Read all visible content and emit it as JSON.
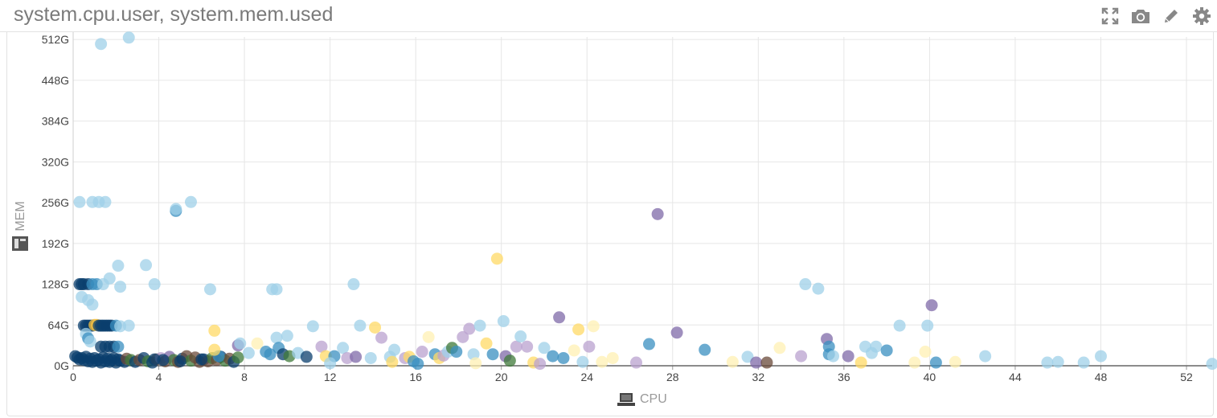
{
  "widget": {
    "title": "system.cpu.user, system.mem.used",
    "icons": [
      "expand-icon",
      "camera-icon",
      "pencil-icon",
      "gear-icon"
    ]
  },
  "chart_data": {
    "type": "scatter",
    "xlabel": "CPU",
    "ylabel": "MEM",
    "xlim": [
      0,
      53.2
    ],
    "ylim": [
      0,
      516
    ],
    "x_ticks": [
      0,
      4,
      8,
      12,
      16,
      20,
      24,
      28,
      32,
      36,
      40,
      44,
      48,
      52
    ],
    "y_ticks": [
      0,
      64,
      128,
      192,
      256,
      320,
      384,
      448,
      512
    ],
    "y_tick_labels": [
      "0G",
      "64G",
      "128G",
      "192G",
      "256G",
      "320G",
      "384G",
      "448G",
      "512G"
    ],
    "grid": true,
    "colors": [
      "#9fd0e8",
      "#3a8fc0",
      "#0b3f6e",
      "#b9a2cf",
      "#7f6aa8",
      "#ffd966",
      "#f5c242",
      "#fff0b3",
      "#3f7a3a",
      "#6a4a3a"
    ],
    "points": [
      [
        1.3,
        505,
        0
      ],
      [
        2.6,
        515,
        0
      ],
      [
        0.3,
        257,
        0
      ],
      [
        0.9,
        257,
        0
      ],
      [
        1.2,
        257,
        0
      ],
      [
        1.5,
        257,
        0
      ],
      [
        5.5,
        257,
        0
      ],
      [
        4.8,
        243,
        1
      ],
      [
        4.8,
        246,
        0
      ],
      [
        2.1,
        157,
        0
      ],
      [
        3.4,
        158,
        0
      ],
      [
        2.2,
        124,
        0
      ],
      [
        3.8,
        128,
        0
      ],
      [
        6.4,
        120,
        0
      ],
      [
        9.3,
        120,
        0
      ],
      [
        9.5,
        120,
        0
      ],
      [
        13.1,
        128,
        0
      ],
      [
        34.2,
        128,
        0
      ],
      [
        34.8,
        121,
        0
      ],
      [
        1.7,
        137,
        0
      ],
      [
        27.3,
        238,
        4
      ],
      [
        19.8,
        168,
        5
      ],
      [
        40.1,
        95,
        4
      ],
      [
        0.3,
        128,
        2
      ],
      [
        0.4,
        128,
        2
      ],
      [
        0.5,
        128,
        2
      ],
      [
        0.7,
        128,
        2
      ],
      [
        0.9,
        128,
        1
      ],
      [
        1.1,
        128,
        1
      ],
      [
        1.4,
        128,
        0
      ],
      [
        0.4,
        108,
        0
      ],
      [
        0.7,
        103,
        0
      ],
      [
        0.9,
        96,
        0
      ],
      [
        0.5,
        63,
        2
      ],
      [
        0.6,
        63,
        2
      ],
      [
        0.7,
        63,
        2
      ],
      [
        0.8,
        63,
        2
      ],
      [
        0.9,
        63,
        2
      ],
      [
        1.0,
        64,
        6
      ],
      [
        1.1,
        64,
        6
      ],
      [
        1.2,
        63,
        2
      ],
      [
        1.3,
        63,
        2
      ],
      [
        1.4,
        63,
        2
      ],
      [
        1.5,
        63,
        2
      ],
      [
        1.6,
        63,
        2
      ],
      [
        1.7,
        63,
        2
      ],
      [
        1.8,
        63,
        2
      ],
      [
        2.0,
        63,
        1
      ],
      [
        2.2,
        62,
        0
      ],
      [
        2.6,
        63,
        0
      ],
      [
        0.6,
        50,
        0
      ],
      [
        0.7,
        43,
        1
      ],
      [
        0.8,
        38,
        0
      ],
      [
        1.3,
        30,
        2
      ],
      [
        1.5,
        30,
        2
      ],
      [
        1.7,
        30,
        2
      ],
      [
        1.9,
        30,
        2
      ],
      [
        2.1,
        30,
        1
      ],
      [
        0.1,
        15,
        2
      ],
      [
        0.2,
        13,
        2
      ],
      [
        0.3,
        10,
        2
      ],
      [
        0.4,
        12,
        2
      ],
      [
        0.5,
        9,
        2
      ],
      [
        0.6,
        14,
        2
      ],
      [
        0.7,
        7,
        2
      ],
      [
        0.8,
        11,
        2
      ],
      [
        0.9,
        6,
        2
      ],
      [
        1.0,
        12,
        2
      ],
      [
        1.1,
        8,
        2
      ],
      [
        1.2,
        10,
        2
      ],
      [
        1.3,
        5,
        2
      ],
      [
        1.4,
        13,
        2
      ],
      [
        1.5,
        7,
        2
      ],
      [
        1.6,
        11,
        2
      ],
      [
        1.7,
        6,
        2
      ],
      [
        1.8,
        9,
        2
      ],
      [
        1.9,
        12,
        2
      ],
      [
        2.0,
        5,
        2
      ],
      [
        2.1,
        10,
        2
      ],
      [
        2.2,
        8,
        2
      ],
      [
        2.4,
        6,
        2
      ],
      [
        2.5,
        11,
        9
      ],
      [
        2.7,
        9,
        8
      ],
      [
        2.9,
        6,
        2
      ],
      [
        3.1,
        9,
        9
      ],
      [
        3.3,
        12,
        2
      ],
      [
        3.5,
        7,
        8
      ],
      [
        3.7,
        5,
        2
      ],
      [
        3.9,
        10,
        9
      ],
      [
        4.1,
        12,
        3
      ],
      [
        4.3,
        7,
        9
      ],
      [
        4.5,
        14,
        4
      ],
      [
        4.7,
        9,
        8
      ],
      [
        4.9,
        6,
        9
      ],
      [
        5.1,
        11,
        2
      ],
      [
        5.3,
        15,
        9
      ],
      [
        5.5,
        8,
        8
      ],
      [
        5.7,
        13,
        9
      ],
      [
        5.9,
        6,
        9
      ],
      [
        6.1,
        10,
        2
      ],
      [
        6.3,
        7,
        9
      ],
      [
        6.5,
        12,
        8
      ],
      [
        6.7,
        9,
        9
      ],
      [
        6.9,
        14,
        2
      ],
      [
        7.1,
        8,
        8
      ],
      [
        7.3,
        11,
        9
      ],
      [
        7.5,
        6,
        2
      ],
      [
        7.7,
        13,
        8
      ],
      [
        3.8,
        10,
        2
      ],
      [
        4.2,
        9,
        2
      ],
      [
        5.0,
        7,
        2
      ],
      [
        6.0,
        10,
        2
      ],
      [
        6.8,
        15,
        1
      ],
      [
        6.6,
        55,
        5
      ],
      [
        6.6,
        25,
        5
      ],
      [
        7.7,
        32,
        4
      ],
      [
        7.8,
        35,
        0
      ],
      [
        8.2,
        20,
        0
      ],
      [
        8.6,
        35,
        7
      ],
      [
        9.0,
        22,
        1
      ],
      [
        9.2,
        18,
        1
      ],
      [
        9.5,
        44,
        0
      ],
      [
        9.6,
        28,
        1
      ],
      [
        9.8,
        18,
        2
      ],
      [
        10.0,
        47,
        0
      ],
      [
        10.1,
        15,
        8
      ],
      [
        10.5,
        20,
        0
      ],
      [
        10.9,
        14,
        2
      ],
      [
        11.2,
        62,
        0
      ],
      [
        11.6,
        30,
        3
      ],
      [
        11.8,
        15,
        5
      ],
      [
        12.2,
        15,
        1
      ],
      [
        12.6,
        28,
        0
      ],
      [
        12.8,
        12,
        3
      ],
      [
        13.2,
        14,
        4
      ],
      [
        13.4,
        63,
        0
      ],
      [
        13.9,
        12,
        0
      ],
      [
        14.1,
        60,
        5
      ],
      [
        14.4,
        44,
        3
      ],
      [
        14.8,
        14,
        0
      ],
      [
        15.0,
        25,
        0
      ],
      [
        15.5,
        12,
        3
      ],
      [
        15.7,
        14,
        5
      ],
      [
        15.9,
        7,
        1
      ],
      [
        16.3,
        22,
        3
      ],
      [
        16.6,
        45,
        7
      ],
      [
        16.9,
        18,
        1
      ],
      [
        17.1,
        12,
        5
      ],
      [
        17.3,
        16,
        3
      ],
      [
        17.5,
        22,
        0
      ],
      [
        17.7,
        28,
        8
      ],
      [
        17.9,
        22,
        1
      ],
      [
        18.2,
        45,
        3
      ],
      [
        18.5,
        58,
        3
      ],
      [
        18.7,
        18,
        0
      ],
      [
        19.0,
        63,
        0
      ],
      [
        19.3,
        35,
        5
      ],
      [
        19.6,
        18,
        1
      ],
      [
        20.1,
        70,
        0
      ],
      [
        20.2,
        15,
        4
      ],
      [
        20.4,
        8,
        8
      ],
      [
        20.7,
        30,
        3
      ],
      [
        20.9,
        46,
        0
      ],
      [
        21.2,
        30,
        3
      ],
      [
        21.5,
        5,
        5
      ],
      [
        22.0,
        28,
        0
      ],
      [
        22.4,
        15,
        1
      ],
      [
        22.7,
        76,
        4
      ],
      [
        22.9,
        12,
        1
      ],
      [
        23.4,
        24,
        7
      ],
      [
        23.6,
        57,
        5
      ],
      [
        23.8,
        6,
        0
      ],
      [
        24.1,
        30,
        3
      ],
      [
        24.3,
        62,
        7
      ],
      [
        24.7,
        6,
        7
      ],
      [
        25.2,
        12,
        7
      ],
      [
        26.3,
        5,
        3
      ],
      [
        26.9,
        34,
        1
      ],
      [
        28.2,
        52,
        4
      ],
      [
        29.5,
        25,
        1
      ],
      [
        30.8,
        6,
        7
      ],
      [
        31.5,
        14,
        0
      ],
      [
        31.9,
        5,
        4
      ],
      [
        32.4,
        5,
        9
      ],
      [
        33.0,
        28,
        7
      ],
      [
        34.0,
        15,
        3
      ],
      [
        35.2,
        42,
        4
      ],
      [
        35.3,
        30,
        1
      ],
      [
        35.3,
        18,
        1
      ],
      [
        35.5,
        15,
        0
      ],
      [
        36.2,
        15,
        4
      ],
      [
        36.8,
        5,
        5
      ],
      [
        37.0,
        30,
        0
      ],
      [
        37.3,
        20,
        0
      ],
      [
        37.5,
        30,
        0
      ],
      [
        38.0,
        24,
        1
      ],
      [
        38.6,
        63,
        0
      ],
      [
        39.3,
        5,
        7
      ],
      [
        39.8,
        22,
        7
      ],
      [
        39.9,
        63,
        0
      ],
      [
        40.3,
        5,
        1
      ],
      [
        41.2,
        6,
        7
      ],
      [
        42.6,
        15,
        0
      ],
      [
        45.5,
        5,
        0
      ],
      [
        46.0,
        6,
        0
      ],
      [
        47.2,
        5,
        0
      ],
      [
        48.0,
        15,
        0
      ],
      [
        53.2,
        3,
        0
      ],
      [
        16.1,
        3,
        1
      ],
      [
        12.0,
        4,
        0
      ],
      [
        14.9,
        6,
        5
      ],
      [
        18.8,
        4,
        7
      ],
      [
        21.8,
        3,
        3
      ]
    ]
  }
}
